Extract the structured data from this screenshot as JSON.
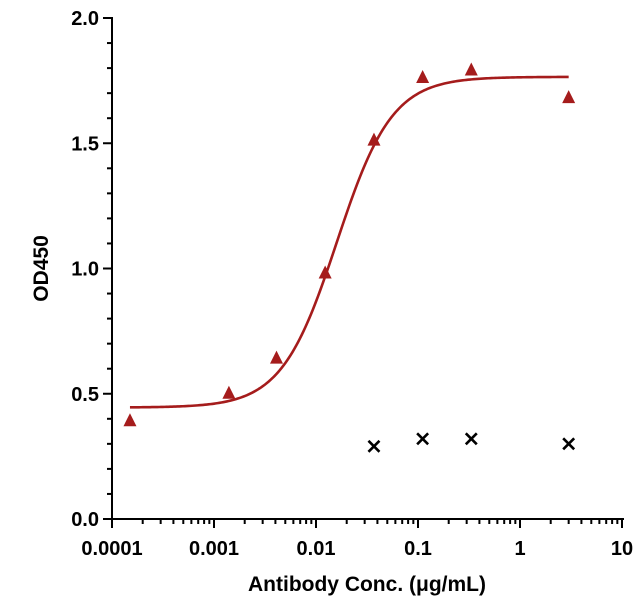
{
  "chart_data": {
    "type": "scatter",
    "xlabel": "Antibody Conc. (μg/mL)",
    "ylabel": "OD450",
    "xscale": "log",
    "xlim": [
      0.0001,
      10
    ],
    "ylim": [
      0,
      2.0
    ],
    "x_ticks": [
      {
        "value": 0.0001,
        "label": "0.0001"
      },
      {
        "value": 0.001,
        "label": "0.001"
      },
      {
        "value": 0.01,
        "label": "0.01"
      },
      {
        "value": 0.1,
        "label": "0.1"
      },
      {
        "value": 1,
        "label": "1"
      },
      {
        "value": 10,
        "label": "10"
      }
    ],
    "y_ticks": [
      {
        "value": 0,
        "label": "0.0"
      },
      {
        "value": 0.5,
        "label": "0.5"
      },
      {
        "value": 1.0,
        "label": "1.0"
      },
      {
        "value": 1.5,
        "label": "1.5"
      },
      {
        "value": 2.0,
        "label": "2.0"
      }
    ],
    "grid": false,
    "legend": "none",
    "series": [
      {
        "marker": "triangle",
        "color": "#a51c1c",
        "points": [
          {
            "x": 0.00015,
            "y": 0.39
          },
          {
            "x": 0.0014,
            "y": 0.5
          },
          {
            "x": 0.0041,
            "y": 0.64
          },
          {
            "x": 0.0123,
            "y": 0.98
          },
          {
            "x": 0.037,
            "y": 1.51
          },
          {
            "x": 0.111,
            "y": 1.76
          },
          {
            "x": 0.333,
            "y": 1.79
          },
          {
            "x": 3.0,
            "y": 1.68
          }
        ],
        "fit": {
          "model": "4PL",
          "bottom": 0.445,
          "top": 1.765,
          "ec50": 0.016,
          "hill": 1.6,
          "x_range": [
            0.00015,
            3.0
          ]
        }
      },
      {
        "marker": "x",
        "color": "#000000",
        "points": [
          {
            "x": 0.037,
            "y": 0.29
          },
          {
            "x": 0.111,
            "y": 0.32
          },
          {
            "x": 0.333,
            "y": 0.32
          },
          {
            "x": 3.0,
            "y": 0.3
          }
        ]
      }
    ]
  }
}
